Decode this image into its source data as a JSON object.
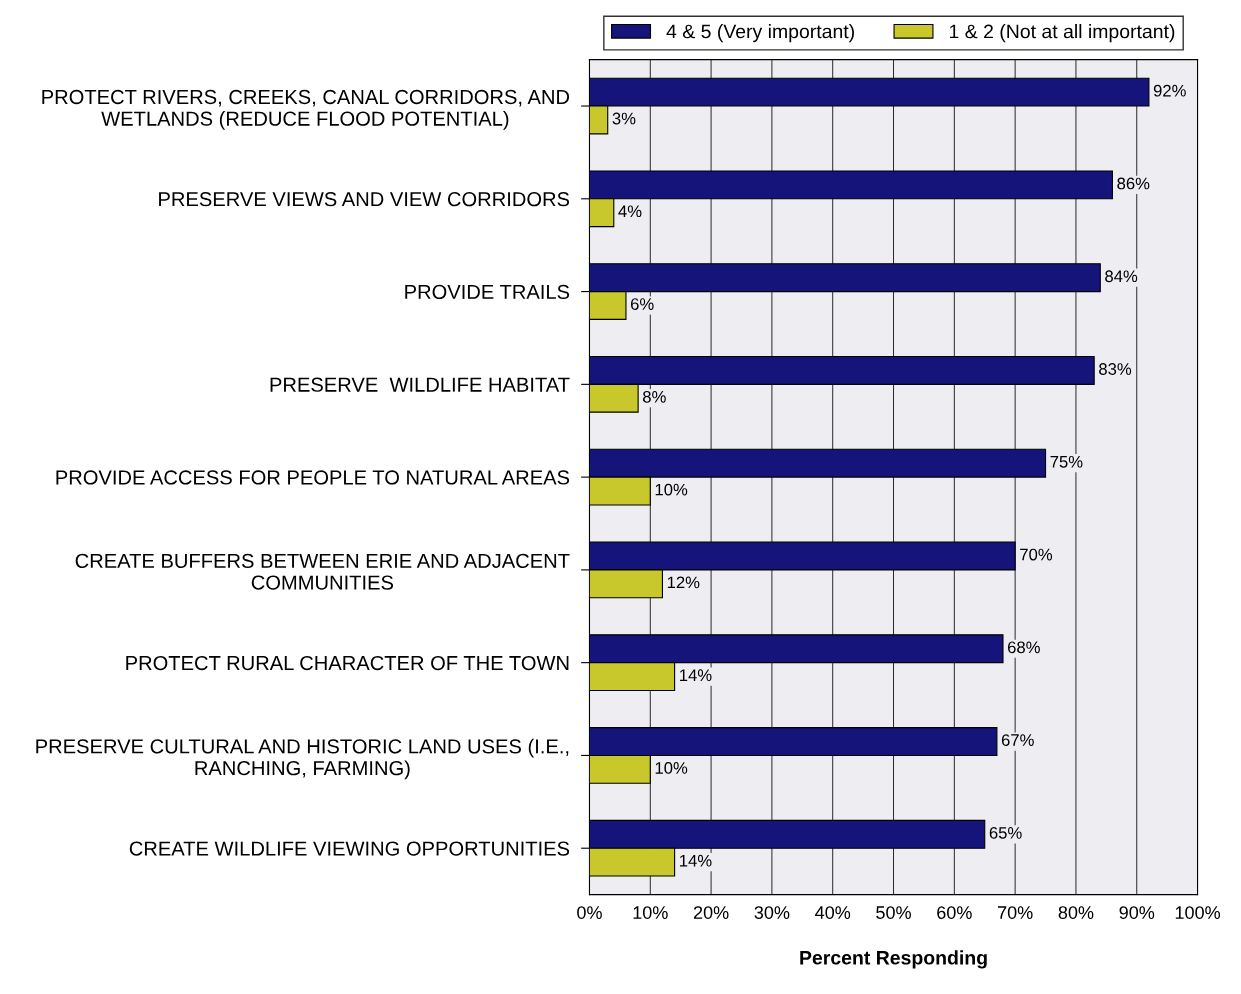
{
  "chart_data": {
    "type": "bar",
    "orientation": "horizontal",
    "categories": [
      "PROTECT RIVERS, CREEKS, CANAL CORRIDORS, AND\nWETLANDS (REDUCE FLOOD POTENTIAL)",
      "PRESERVE VIEWS AND VIEW CORRIDORS",
      "PROVIDE TRAILS",
      "PRESERVE  WILDLIFE HABITAT",
      "PROVIDE ACCESS FOR PEOPLE TO NATURAL AREAS",
      "CREATE BUFFERS BETWEEN ERIE AND ADJACENT\nCOMMUNITIES",
      "PROTECT RURAL CHARACTER OF THE TOWN",
      "PRESERVE CULTURAL AND HISTORIC LAND USES (I.E.,\nRANCHING, FARMING)",
      "CREATE WILDLIFE VIEWING OPPORTUNITIES"
    ],
    "series": [
      {
        "name": "4 & 5 (Very important)",
        "color": "#14147a",
        "values": [
          92,
          86,
          84,
          83,
          75,
          70,
          68,
          67,
          65
        ],
        "value_labels": [
          "92%",
          "86%",
          "84%",
          "83%",
          "75%",
          "70%",
          "68%",
          "67%",
          "65%"
        ]
      },
      {
        "name": "1 & 2 (Not at all important)",
        "color": "#c8c82c",
        "values": [
          3,
          4,
          6,
          8,
          10,
          12,
          14,
          10,
          14
        ],
        "value_labels": [
          "3%",
          "4%",
          "6%",
          "8%",
          "10%",
          "12%",
          "14%",
          "10%",
          "14%"
        ]
      }
    ],
    "xlabel": "Percent Responding",
    "xlim": [
      0,
      100
    ],
    "xticks": [
      {
        "value": 0,
        "label": "0%"
      },
      {
        "value": 10,
        "label": "10%"
      },
      {
        "value": 20,
        "label": "20%"
      },
      {
        "value": 30,
        "label": "30%"
      },
      {
        "value": 40,
        "label": "40%"
      },
      {
        "value": 50,
        "label": "50%"
      },
      {
        "value": 60,
        "label": "60%"
      },
      {
        "value": 70,
        "label": "70%"
      },
      {
        "value": 80,
        "label": "80%"
      },
      {
        "value": 90,
        "label": "90%"
      },
      {
        "value": 100,
        "label": "100%"
      }
    ],
    "grid": "x",
    "legend": "top"
  }
}
